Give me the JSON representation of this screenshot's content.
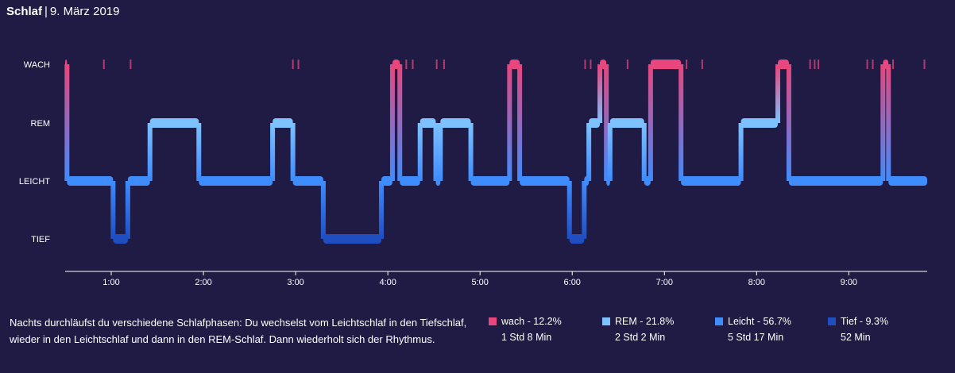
{
  "header": {
    "title": "Schlaf",
    "separator": "|",
    "date": "9. März 2019"
  },
  "description": "Nachts durchläufst du verschiedene Schlafphasen: Du wechselst vom Leichtschlaf in den Tiefschlaf, wieder in den Leichtschlaf und dann in den REM-Schlaf. Dann wiederholt sich der Rhythmus.",
  "legend": [
    {
      "label": "wach - 12.2%",
      "duration": "1 Std 8 Min",
      "color": "#e8467c"
    },
    {
      "label": "REM - 21.8%",
      "duration": "2 Std 2 Min",
      "color": "#7ec1ff"
    },
    {
      "label": "Leicht - 56.7%",
      "duration": "5 Std 17 Min",
      "color": "#3f8cff"
    },
    {
      "label": "Tief - 9.3%",
      "duration": "52 Min",
      "color": "#1f4ec1"
    }
  ],
  "chart_data": {
    "type": "hypnogram",
    "stages": [
      "WACH",
      "REM",
      "LEICHT",
      "TIEF"
    ],
    "x_ticks": [
      "1:00",
      "2:00",
      "3:00",
      "4:00",
      "5:00",
      "6:00",
      "7:00",
      "8:00",
      "9:00"
    ],
    "x_tick_hours": [
      1,
      2,
      3,
      4,
      5,
      6,
      7,
      8,
      9
    ],
    "x_range_hours": [
      0.5,
      9.85
    ],
    "colors": {
      "WACH": "#e8467c",
      "REM": "#7ec1ff",
      "LEICHT": "#3f8cff",
      "TIEF": "#1f4ec1"
    },
    "segments": [
      {
        "start": 0.5,
        "end": 0.52,
        "stage": "WACH"
      },
      {
        "start": 0.52,
        "end": 1.02,
        "stage": "LEICHT"
      },
      {
        "start": 1.02,
        "end": 1.18,
        "stage": "TIEF"
      },
      {
        "start": 1.18,
        "end": 1.42,
        "stage": "LEICHT"
      },
      {
        "start": 1.42,
        "end": 1.95,
        "stage": "REM"
      },
      {
        "start": 1.95,
        "end": 2.75,
        "stage": "LEICHT"
      },
      {
        "start": 2.75,
        "end": 2.97,
        "stage": "REM"
      },
      {
        "start": 2.97,
        "end": 3.3,
        "stage": "LEICHT"
      },
      {
        "start": 3.3,
        "end": 3.93,
        "stage": "TIEF"
      },
      {
        "start": 3.93,
        "end": 4.05,
        "stage": "LEICHT"
      },
      {
        "start": 4.05,
        "end": 4.13,
        "stage": "WACH"
      },
      {
        "start": 4.13,
        "end": 4.35,
        "stage": "LEICHT"
      },
      {
        "start": 4.35,
        "end": 4.52,
        "stage": "REM"
      },
      {
        "start": 4.52,
        "end": 4.57,
        "stage": "LEICHT"
      },
      {
        "start": 4.57,
        "end": 4.9,
        "stage": "REM"
      },
      {
        "start": 4.9,
        "end": 5.32,
        "stage": "LEICHT"
      },
      {
        "start": 5.32,
        "end": 5.43,
        "stage": "WACH"
      },
      {
        "start": 5.43,
        "end": 5.97,
        "stage": "LEICHT"
      },
      {
        "start": 5.97,
        "end": 6.13,
        "stage": "TIEF"
      },
      {
        "start": 6.13,
        "end": 6.18,
        "stage": "LEICHT"
      },
      {
        "start": 6.18,
        "end": 6.3,
        "stage": "REM"
      },
      {
        "start": 6.3,
        "end": 6.37,
        "stage": "WACH"
      },
      {
        "start": 6.37,
        "end": 6.41,
        "stage": "LEICHT"
      },
      {
        "start": 6.41,
        "end": 6.78,
        "stage": "REM"
      },
      {
        "start": 6.78,
        "end": 6.85,
        "stage": "LEICHT"
      },
      {
        "start": 6.85,
        "end": 7.18,
        "stage": "WACH"
      },
      {
        "start": 7.18,
        "end": 7.83,
        "stage": "LEICHT"
      },
      {
        "start": 7.83,
        "end": 8.23,
        "stage": "REM"
      },
      {
        "start": 8.23,
        "end": 8.35,
        "stage": "WACH"
      },
      {
        "start": 8.35,
        "end": 9.37,
        "stage": "LEICHT"
      },
      {
        "start": 9.37,
        "end": 9.43,
        "stage": "WACH"
      },
      {
        "start": 9.43,
        "end": 9.85,
        "stage": "LEICHT"
      }
    ],
    "brief_wakes": [
      0.92,
      1.21,
      2.97,
      3.03,
      4.2,
      4.27,
      4.53,
      4.61,
      6.14,
      6.2,
      6.6,
      7.24,
      7.41,
      8.58,
      8.63,
      8.67,
      9.2,
      9.26,
      9.48,
      9.82
    ]
  }
}
